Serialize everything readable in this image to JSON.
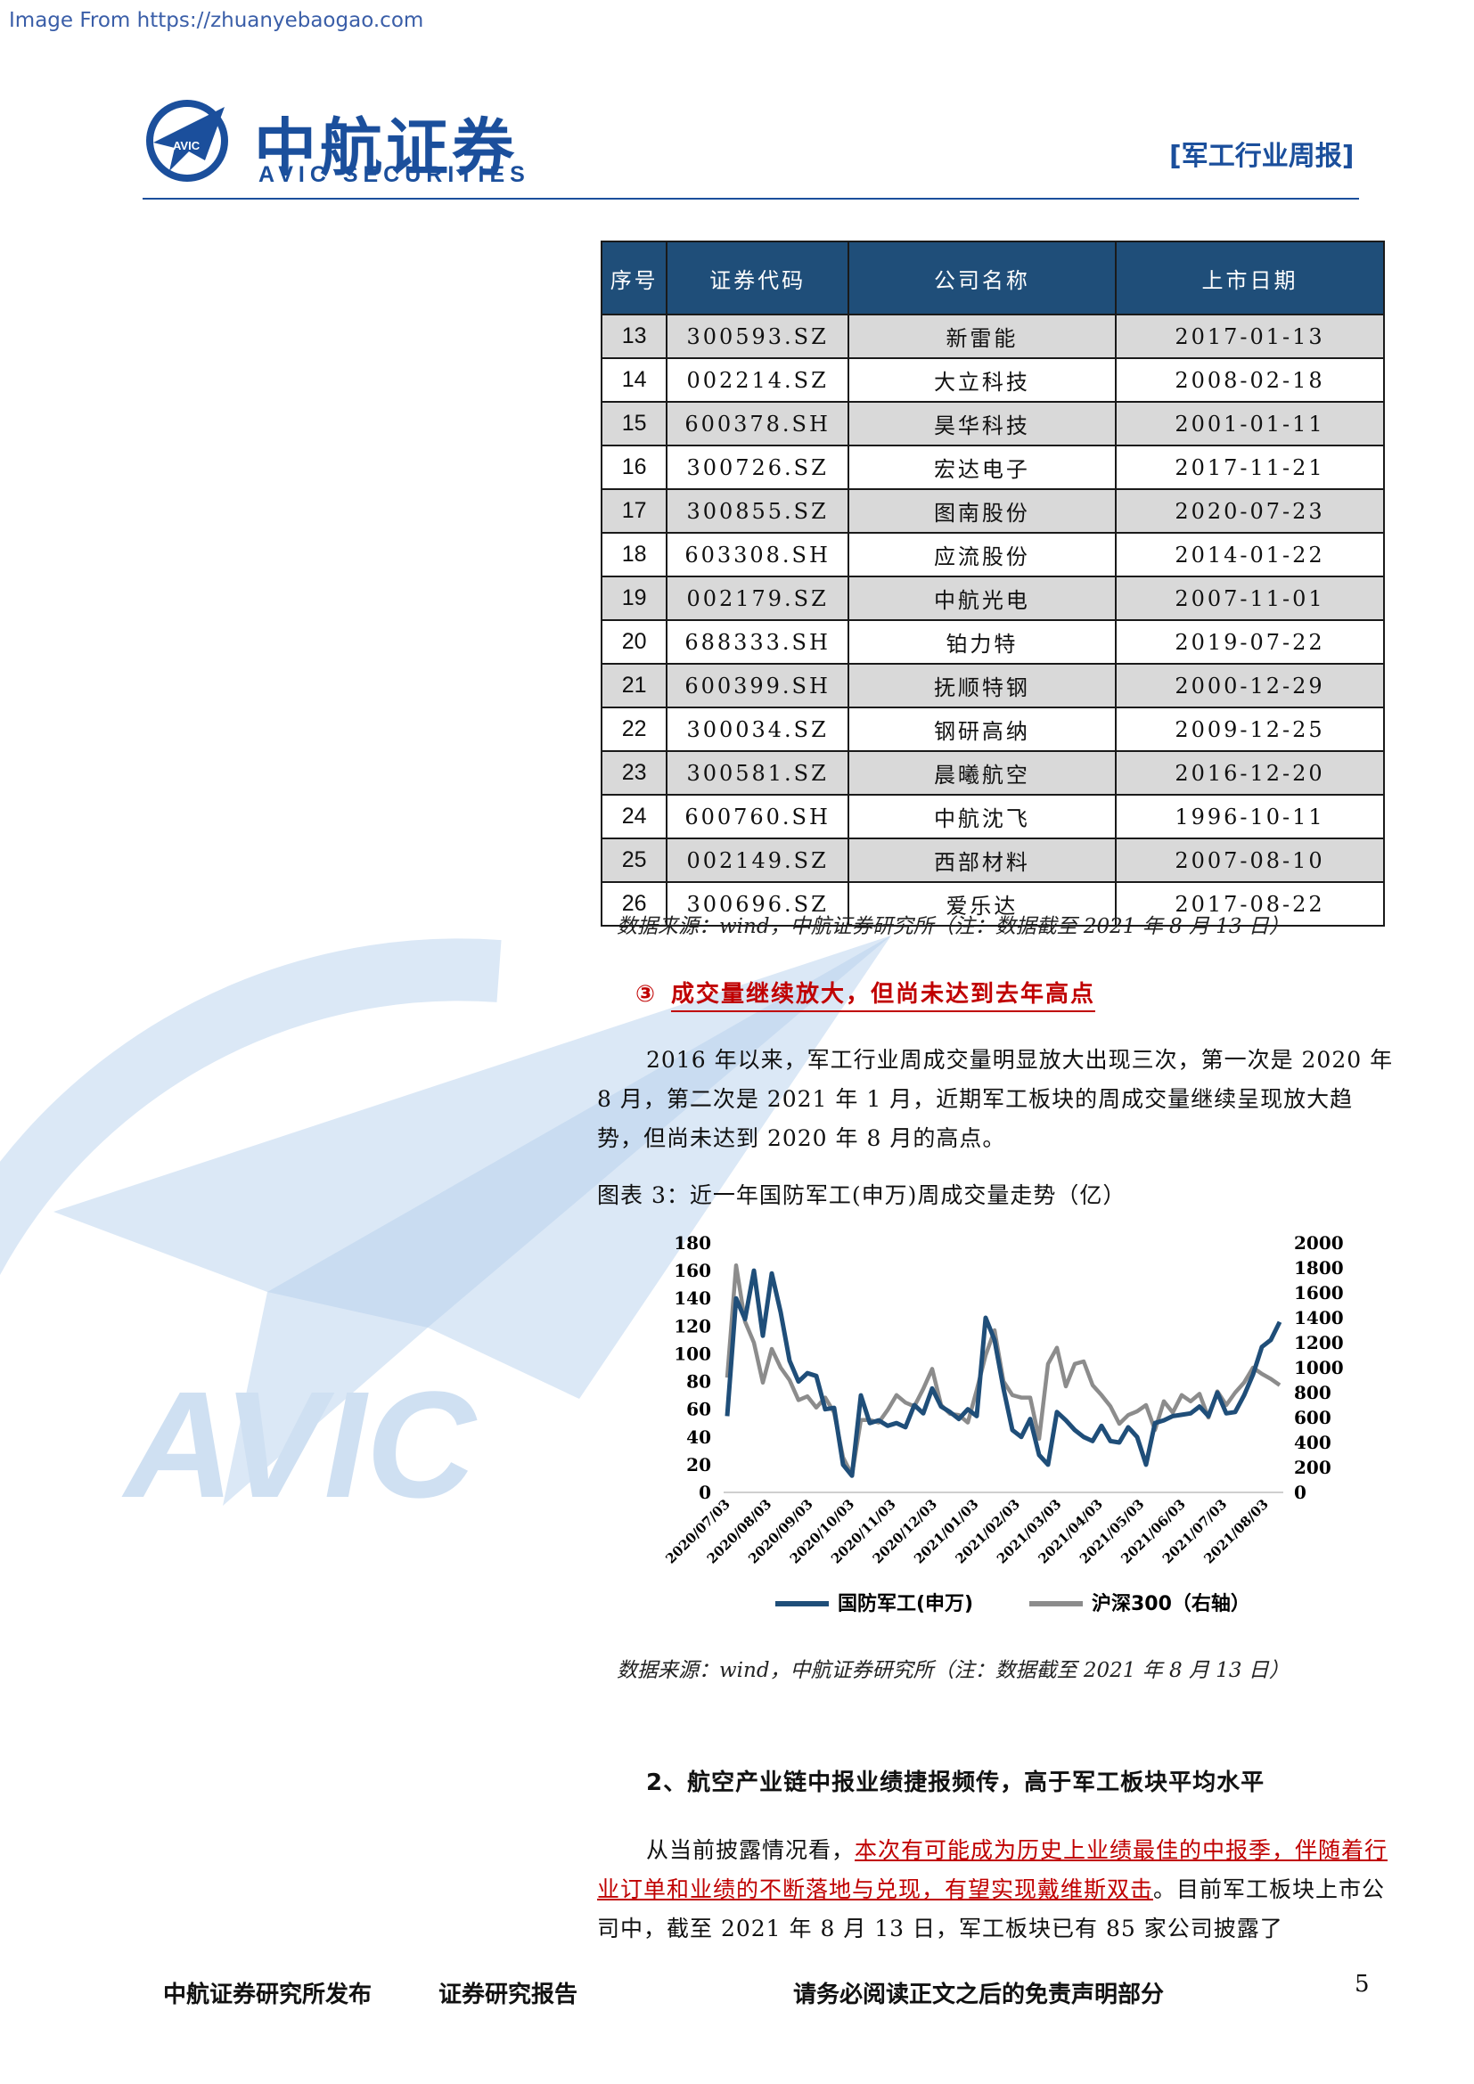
{
  "watermark": {
    "source_url": "Image From https://zhuanyebaogao.com",
    "bg_logo_text": "AVIC"
  },
  "header": {
    "logo_text": "AVIC",
    "brand_cn": "中航证券",
    "brand_en": "AVIC SECURITIES",
    "report_type": "[军工行业周报]"
  },
  "table": {
    "headers": [
      "序号",
      "证券代码",
      "公司名称",
      "上市日期"
    ],
    "rows": [
      {
        "no": "13",
        "code": "300593.SZ",
        "name": "新雷能",
        "date": "2017-01-13"
      },
      {
        "no": "14",
        "code": "002214.SZ",
        "name": "大立科技",
        "date": "2008-02-18"
      },
      {
        "no": "15",
        "code": "600378.SH",
        "name": "昊华科技",
        "date": "2001-01-11"
      },
      {
        "no": "16",
        "code": "300726.SZ",
        "name": "宏达电子",
        "date": "2017-11-21"
      },
      {
        "no": "17",
        "code": "300855.SZ",
        "name": "图南股份",
        "date": "2020-07-23"
      },
      {
        "no": "18",
        "code": "603308.SH",
        "name": "应流股份",
        "date": "2014-01-22"
      },
      {
        "no": "19",
        "code": "002179.SZ",
        "name": "中航光电",
        "date": "2007-11-01"
      },
      {
        "no": "20",
        "code": "688333.SH",
        "name": "铂力特",
        "date": "2019-07-22"
      },
      {
        "no": "21",
        "code": "600399.SH",
        "name": "抚顺特钢",
        "date": "2000-12-29"
      },
      {
        "no": "22",
        "code": "300034.SZ",
        "name": "钢研高纳",
        "date": "2009-12-25"
      },
      {
        "no": "23",
        "code": "300581.SZ",
        "name": "晨曦航空",
        "date": "2016-12-20"
      },
      {
        "no": "24",
        "code": "600760.SH",
        "name": "中航沈飞",
        "date": "1996-10-11"
      },
      {
        "no": "25",
        "code": "002149.SZ",
        "name": "西部材料",
        "date": "2007-08-10"
      },
      {
        "no": "26",
        "code": "300696.SZ",
        "name": "爱乐达",
        "date": "2017-08-22"
      }
    ],
    "source": "数据来源：wind，中航证券研究所（注：数据截至 2021 年 8 月 13 日）"
  },
  "section3": {
    "marker": "③",
    "heading": "成交量继续放大，但尚未达到去年高点",
    "paragraph": "2016 年以来，军工行业周成交量明显放大出现三次，第一次是 2020 年 8 月，第二次是 2021 年 1 月，近期军工板块的周成交量继续呈现放大趋势，但尚未达到 2020 年 8 月的高点。",
    "figure_title": "图表 3：近一年国防军工(申万)周成交量走势（亿）",
    "source": "数据来源：wind，中航证券研究所（注：数据截至 2021 年 8 月 13 日）"
  },
  "chart_data": {
    "type": "line",
    "title": "近一年国防军工(申万)周成交量走势（亿）",
    "x_tick_labels": [
      "2020/07/03",
      "2020/08/03",
      "2020/09/03",
      "2020/10/03",
      "2020/11/03",
      "2020/12/03",
      "2021/01/03",
      "2021/02/03",
      "2021/03/03",
      "2021/04/03",
      "2021/05/03",
      "2021/06/03",
      "2021/07/03",
      "2021/08/03"
    ],
    "y_left": {
      "min": 0,
      "max": 180,
      "ticks": [
        "0",
        "20",
        "40",
        "60",
        "80",
        "100",
        "120",
        "140",
        "160",
        "180"
      ]
    },
    "y_right": {
      "min": 0,
      "max": 2000,
      "ticks": [
        "0",
        "200",
        "400",
        "600",
        "800",
        "1000",
        "1200",
        "1400",
        "1600",
        "1800",
        "2000"
      ]
    },
    "series": [
      {
        "name": "国防军工(申万)",
        "axis": "left",
        "color": "#1f4e79",
        "values": [
          55,
          140,
          125,
          160,
          113,
          158,
          130,
          95,
          80,
          86,
          84,
          60,
          61,
          20,
          12,
          70,
          50,
          52,
          48,
          50,
          47,
          63,
          57,
          75,
          62,
          58,
          53,
          60,
          55,
          126,
          110,
          75,
          45,
          40,
          53,
          27,
          20,
          58,
          52,
          45,
          40,
          37,
          48,
          37,
          36,
          47,
          40,
          20,
          50,
          52,
          55,
          56,
          57,
          62,
          55,
          72,
          57,
          58,
          70,
          85,
          105,
          110,
          123
        ]
      },
      {
        "name": "沪深300（右轴）",
        "axis": "right",
        "color": "#8c8c8c",
        "values": [
          920,
          1820,
          1370,
          1200,
          880,
          1150,
          1000,
          900,
          740,
          770,
          680,
          760,
          640,
          280,
          140,
          580,
          580,
          560,
          660,
          780,
          720,
          690,
          830,
          990,
          700,
          630,
          620,
          560,
          820,
          1100,
          1300,
          890,
          780,
          760,
          760,
          430,
          1030,
          1160,
          850,
          1030,
          1050,
          860,
          780,
          690,
          550,
          620,
          650,
          700,
          500,
          730,
          640,
          780,
          730,
          790,
          600,
          810,
          700,
          800,
          880,
          1000,
          950,
          910,
          860
        ]
      }
    ],
    "legend": [
      "国防军工(申万)",
      "沪深300（右轴）"
    ],
    "legend_position": "bottom"
  },
  "section2": {
    "heading": "2、航空产业链中报业绩捷报频传，高于军工板块平均水平",
    "para_intro": "从当前披露情况看，",
    "para_highlight": "本次有可能成为历史上业绩最佳的中报季，伴随着行业订单和业绩的不断落地与兑现，有望实现戴维斯双击",
    "para_rest": "。目前军工板块上市公司中，截至 2021 年 8 月 13 日，军工板块已有 85 家公司披露了"
  },
  "footer": {
    "publisher": "中航证券研究所发布",
    "report_kind": "证券研究报告",
    "disclaimer": "请务必阅读正文之后的免责声明部分",
    "page": "5"
  }
}
